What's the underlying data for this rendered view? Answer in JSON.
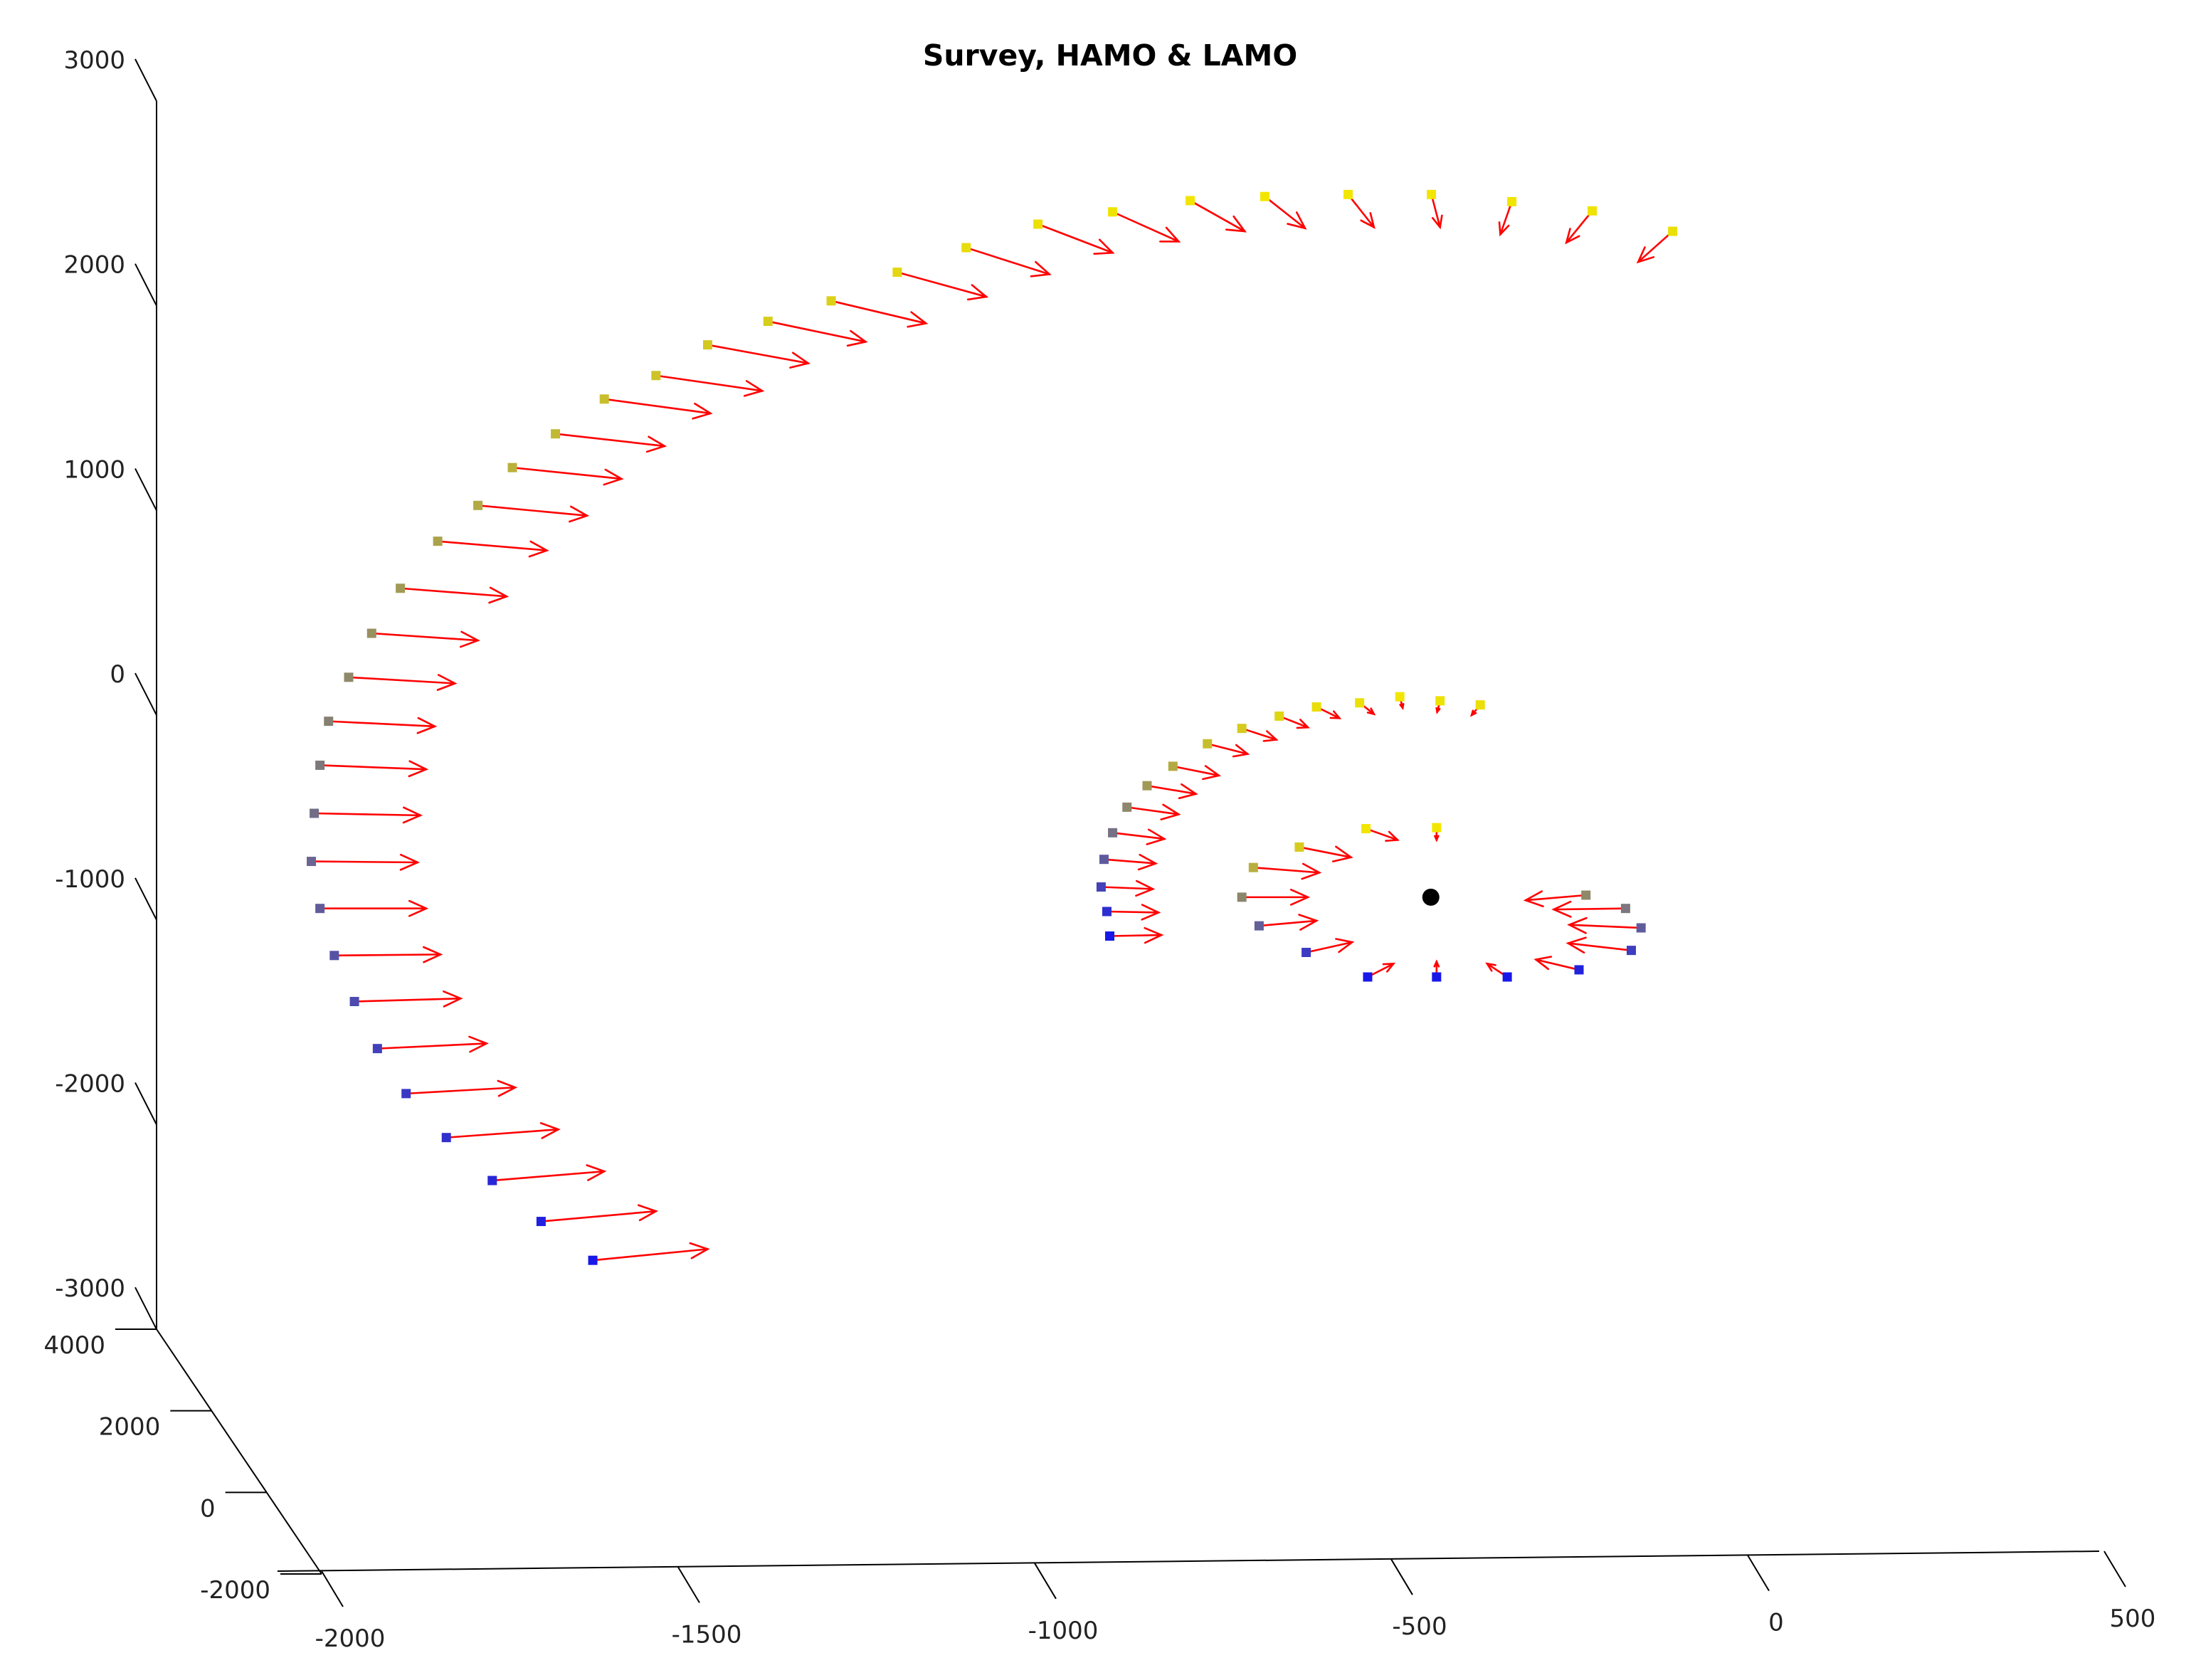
{
  "chart_data": {
    "type": "3d-quiver",
    "title": "Survey, HAMO & LAMO",
    "xlabel": "",
    "ylabel": "",
    "zlabel": "",
    "xlim": [
      -2000,
      500
    ],
    "ylim": [
      -2000,
      4000
    ],
    "zlim": [
      -3000,
      3000
    ],
    "x_ticks": [
      "-2000",
      "-1500",
      "-1000",
      "-500",
      "0",
      "500"
    ],
    "y_ticks": [
      "4000",
      "2000",
      "0",
      "-2000"
    ],
    "z_ticks": [
      "3000",
      "2000",
      "1000",
      "0",
      "-1000",
      "-2000",
      "-3000"
    ],
    "grid": false,
    "colors": {
      "arrow": "#ff0000",
      "marker_start": "#1818e8",
      "marker_end": "#f2e600",
      "body": "#000000"
    },
    "body": {
      "x": -116,
      "z": -890
    },
    "series": [
      {
        "points": [
          [
            -1575,
            -2665,
            200,
            55
          ],
          [
            -1665,
            -2475,
            200,
            50
          ],
          [
            -1750,
            -2275,
            195,
            45
          ],
          [
            -1830,
            -2065,
            195,
            40
          ],
          [
            -1900,
            -1850,
            190,
            30
          ],
          [
            -1950,
            -1630,
            190,
            25
          ],
          [
            -1990,
            -1400,
            185,
            15
          ],
          [
            -2025,
            -1175,
            185,
            5
          ],
          [
            -2050,
            -945,
            185,
            0
          ],
          [
            -2065,
            -715,
            185,
            -5
          ],
          [
            -2060,
            -480,
            185,
            -10
          ],
          [
            -2050,
            -245,
            185,
            -20
          ],
          [
            -2035,
            -30,
            185,
            -25
          ],
          [
            -2000,
            185,
            185,
            -30
          ],
          [
            -1960,
            400,
            185,
            -35
          ],
          [
            -1910,
            620,
            185,
            -40
          ],
          [
            -1845,
            850,
            190,
            -45
          ],
          [
            -1775,
            1025,
            190,
            -50
          ],
          [
            -1715,
            1210,
            190,
            -55
          ],
          [
            -1640,
            1375,
            190,
            -60
          ],
          [
            -1555,
            1545,
            185,
            -70
          ],
          [
            -1465,
            1660,
            185,
            -75
          ],
          [
            -1375,
            1810,
            175,
            -90
          ],
          [
            -1270,
            1925,
            170,
            -100
          ],
          [
            -1160,
            2025,
            165,
            -110
          ],
          [
            -1045,
            2165,
            155,
            -120
          ],
          [
            -925,
            2285,
            145,
            -130
          ],
          [
            -800,
            2400,
            130,
            -140
          ],
          [
            -670,
            2460,
            115,
            -145
          ],
          [
            -535,
            2515,
            95,
            -150
          ],
          [
            -405,
            2535,
            70,
            -155
          ],
          [
            -260,
            2545,
            45,
            -160
          ],
          [
            -115,
            2545,
            15,
            -160
          ],
          [
            25,
            2510,
            -20,
            -160
          ],
          [
            165,
            2465,
            -45,
            -155
          ],
          [
            305,
            2365,
            -60,
            -150
          ]
        ]
      },
      {
        "points": [
          [
            -675,
            -1080,
            90,
            5
          ],
          [
            -680,
            -960,
            90,
            -5
          ],
          [
            -690,
            -840,
            90,
            -10
          ],
          [
            -685,
            -705,
            90,
            -20
          ],
          [
            -670,
            -575,
            90,
            -30
          ],
          [
            -645,
            -450,
            90,
            -35
          ],
          [
            -610,
            -345,
            85,
            -40
          ],
          [
            -565,
            -250,
            80,
            -45
          ],
          [
            -505,
            -140,
            70,
            -50
          ],
          [
            -445,
            -65,
            60,
            -55
          ],
          [
            -380,
            -5,
            50,
            -55
          ],
          [
            -315,
            40,
            40,
            -55
          ],
          [
            -240,
            60,
            25,
            -55
          ],
          [
            -170,
            90,
            5,
            -55
          ],
          [
            -100,
            70,
            -5,
            -55
          ],
          [
            -30,
            50,
            -15,
            -50
          ]
        ]
      },
      {
        "points": [
          [
            -106,
            -1280,
            0,
            75
          ],
          [
            17,
            -1280,
            -35,
            65
          ],
          [
            142,
            -1245,
            -75,
            50
          ],
          [
            233,
            -1150,
            -110,
            35
          ],
          [
            250,
            -1040,
            -125,
            15
          ],
          [
            223,
            -945,
            -125,
            -5
          ],
          [
            154,
            -880,
            -105,
            -25
          ],
          [
            -226,
            -1280,
            45,
            65
          ],
          [
            -333,
            -1160,
            80,
            50
          ],
          [
            -415,
            -1030,
            100,
            25
          ],
          [
            -445,
            -890,
            115,
            0
          ],
          [
            -425,
            -745,
            115,
            -25
          ],
          [
            -345,
            -645,
            90,
            -50
          ],
          [
            -229,
            -555,
            55,
            -55
          ],
          [
            -106,
            -550,
            0,
            -60
          ]
        ]
      }
    ]
  }
}
